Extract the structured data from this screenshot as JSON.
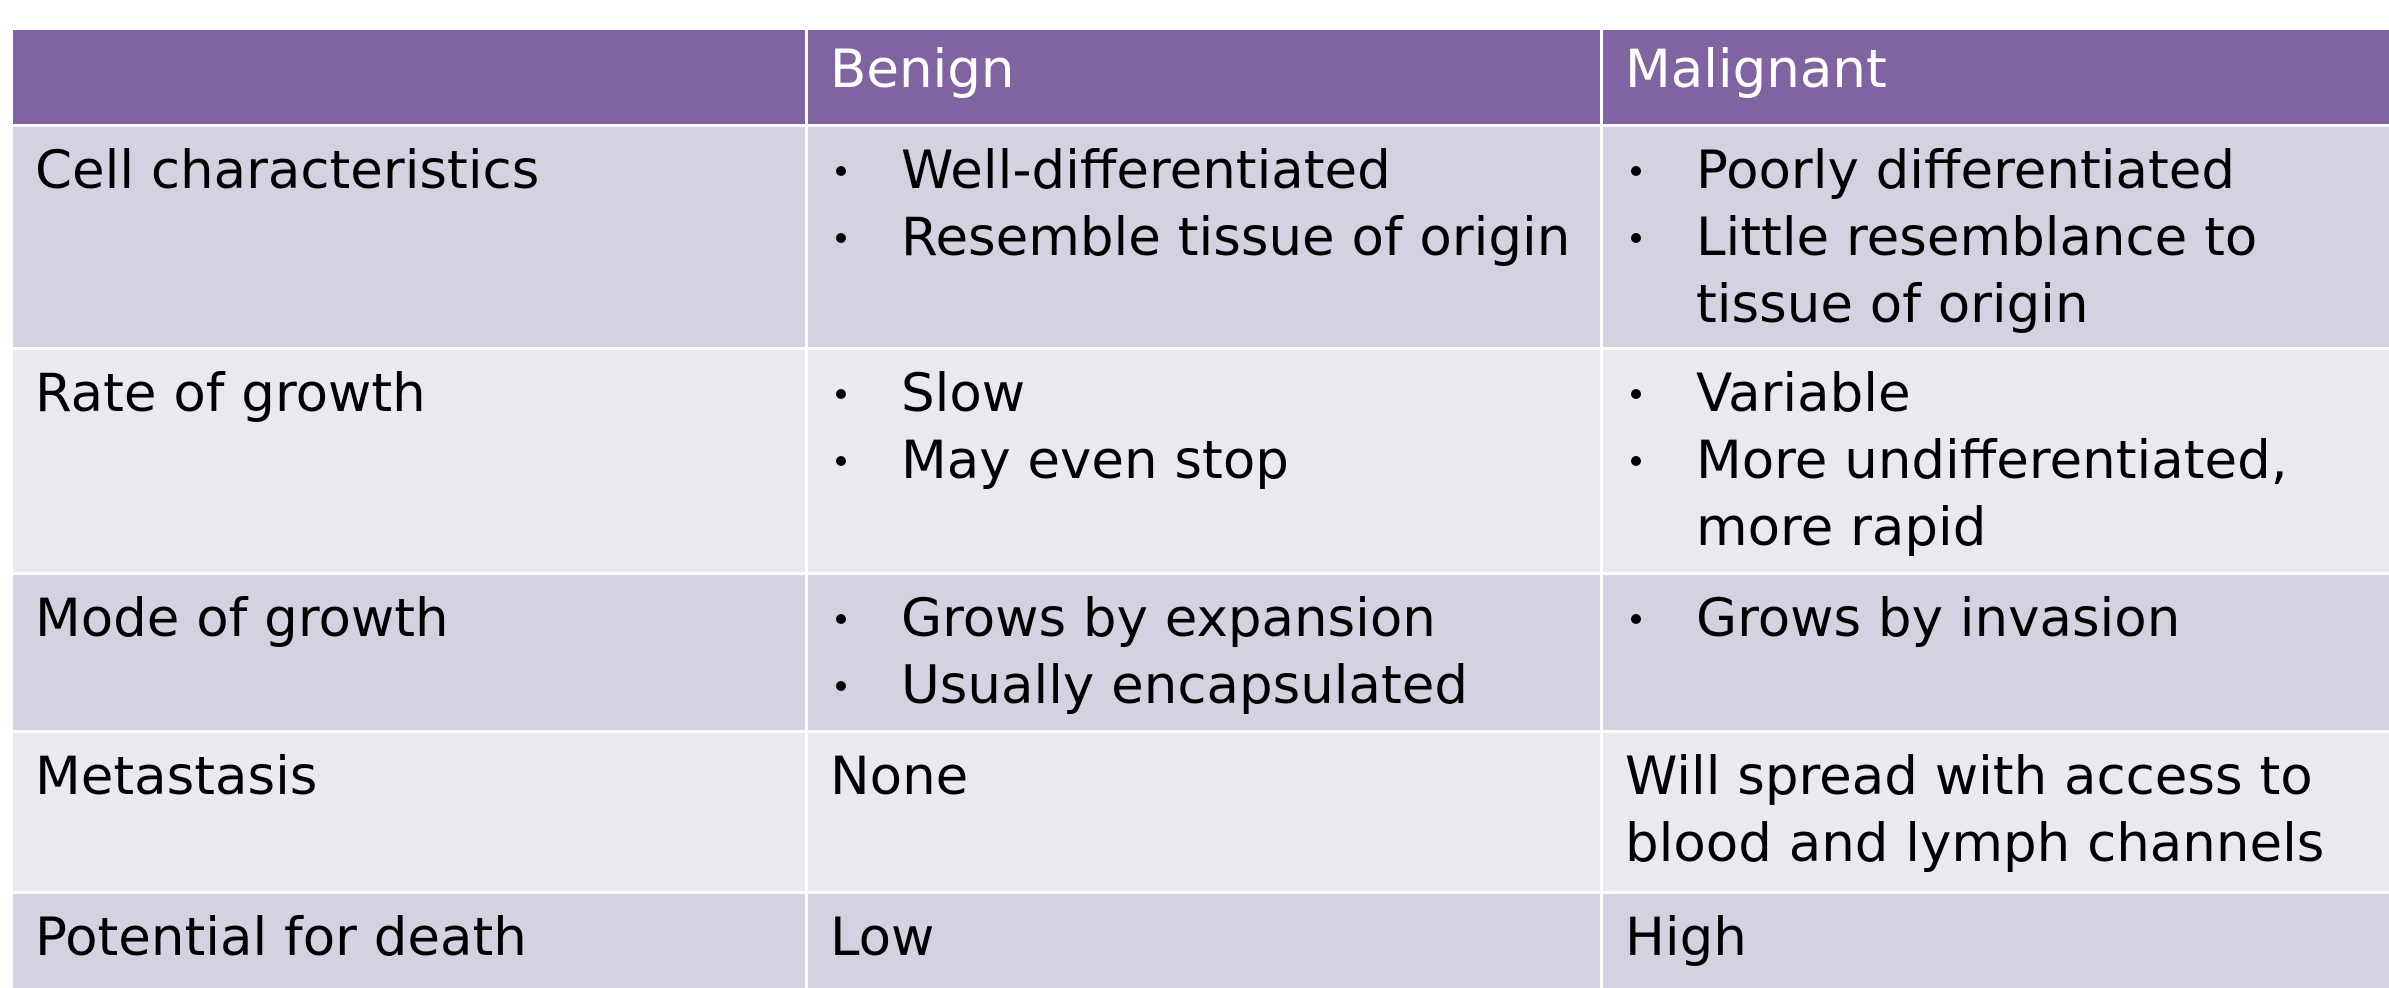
{
  "table": {
    "headers": [
      "",
      "Benign",
      "Malignant"
    ],
    "rows": [
      {
        "label": "Cell characteristics",
        "benign": [
          "Well-differentiated",
          "Resemble tissue of origin"
        ],
        "malignant": [
          [
            "Poorly differentiated"
          ],
          [
            "Little resemblance to",
            "tissue of origin"
          ]
        ]
      },
      {
        "label": "Rate of growth",
        "benign": [
          "Slow",
          "May even stop"
        ],
        "malignant": [
          [
            "Variable"
          ],
          [
            "More undifferentiated,",
            "more rapid"
          ]
        ]
      },
      {
        "label": "Mode of growth",
        "benign": [
          "Grows by expansion",
          "Usually encapsulated"
        ],
        "malignant": [
          [
            "Grows by invasion"
          ]
        ]
      },
      {
        "label": "Metastasis",
        "benign_text": "None",
        "malignant_text": [
          "Will spread with access to",
          "blood and lymph channels"
        ]
      },
      {
        "label": "Potential for death",
        "benign_text": "Low",
        "malignant_text": [
          "High"
        ]
      }
    ]
  },
  "colors": {
    "header": "#8063a1",
    "row_dark": "#d5d1e1",
    "row_light": "#ebe8f0"
  }
}
